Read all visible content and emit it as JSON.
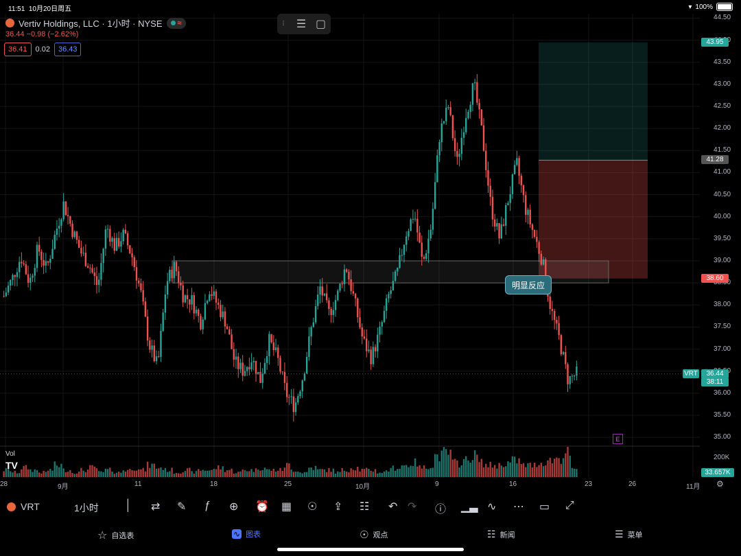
{
  "status_bar": {
    "time": "11:51",
    "date": "10月20日周五",
    "battery": "100%"
  },
  "header": {
    "title": "Vertiv Holdings, LLC · 1小时 · NYSE",
    "quote": "36.44  −0.98 (−2.62%)",
    "bid": "36.41",
    "spread": "0.02",
    "ask": "36.43"
  },
  "annotation": {
    "label": "明显反应"
  },
  "volume": {
    "label": "Vol",
    "tag": "33.657K",
    "axis_200k": "200K"
  },
  "price_tags": {
    "target": "43.95",
    "entry": "41.28",
    "stop": "38.60",
    "last": "36.44",
    "countdown": "38:11",
    "symbol": "VRT"
  },
  "y_ticks": [
    "44.50",
    "44.00",
    "43.50",
    "43.00",
    "42.50",
    "42.00",
    "41.50",
    "41.00",
    "40.50",
    "40.00",
    "39.50",
    "39.00",
    "38.50",
    "38.00",
    "37.50",
    "37.00",
    "36.50",
    "36.00",
    "35.50",
    "35.00"
  ],
  "x_ticks": [
    "28",
    "9月",
    "11",
    "18",
    "25",
    "10月",
    "9",
    "16",
    "23",
    "26",
    "11月"
  ],
  "toolbar": {
    "symbol": "VRT",
    "interval": "1小时"
  },
  "tabs": [
    {
      "label": "自选表",
      "icon": "star-icon"
    },
    {
      "label": "图表",
      "icon": "chart-icon",
      "active": true
    },
    {
      "label": "观点",
      "icon": "lightbulb-icon"
    },
    {
      "label": "新闻",
      "icon": "news-icon"
    },
    {
      "label": "菜单",
      "icon": "menu-icon"
    }
  ],
  "colors": {
    "up": "#26a69a",
    "down": "#ef5350",
    "bg": "#000000"
  },
  "chart_data": {
    "type": "candlestick",
    "ylim": [
      34.8,
      44.6
    ],
    "x_range_labels": [
      "28",
      "9月",
      "11",
      "18",
      "25",
      "10月",
      "9",
      "16",
      "23",
      "26",
      "11月"
    ],
    "close_path": [
      38.2,
      38.6,
      39.1,
      38.5,
      39.3,
      38.8,
      39.6,
      40.3,
      39.7,
      39.2,
      38.9,
      38.4,
      39.8,
      39.3,
      39.6,
      39.1,
      38.3,
      37.1,
      36.6,
      38.5,
      38.9,
      38.2,
      38.1,
      37.6,
      38.4,
      38.0,
      37.6,
      36.7,
      36.5,
      36.8,
      36.3,
      37.2,
      36.8,
      36.0,
      35.7,
      36.4,
      37.5,
      38.4,
      37.8,
      38.2,
      38.9,
      38.1,
      37.2,
      36.8,
      37.4,
      38.2,
      38.7,
      39.6,
      40.1,
      38.9,
      39.8,
      41.9,
      42.5,
      41.2,
      42.3,
      43.0,
      41.8,
      40.2,
      39.5,
      40.4,
      41.2,
      40.2,
      39.6,
      39.0,
      37.9,
      37.2,
      36.3,
      36.44
    ],
    "volume_relative": [
      0.3,
      0.2,
      0.4,
      0.3,
      0.2,
      0.3,
      0.5,
      0.3,
      0.2,
      0.3,
      0.4,
      0.2,
      0.3,
      0.2,
      0.3,
      0.4,
      0.3,
      0.5,
      0.4,
      0.3,
      0.2,
      0.3,
      0.2,
      0.3,
      0.3,
      0.4,
      0.3,
      0.2,
      0.3,
      0.3,
      0.4,
      0.3,
      0.3,
      0.5,
      0.3,
      0.2,
      0.4,
      0.3,
      0.3,
      0.2,
      0.3,
      0.4,
      0.3,
      0.3,
      0.2,
      0.3,
      0.4,
      0.5,
      0.6,
      0.4,
      0.5,
      0.9,
      1.0,
      0.6,
      0.7,
      0.9,
      0.6,
      0.5,
      0.5,
      0.6,
      0.7,
      0.5,
      0.5,
      0.6,
      0.7,
      0.8,
      1.0,
      0.3
    ],
    "zone": {
      "low": 38.5,
      "high": 39.0
    },
    "position": {
      "entry": 41.28,
      "target": 43.95,
      "stop": 38.6
    }
  }
}
